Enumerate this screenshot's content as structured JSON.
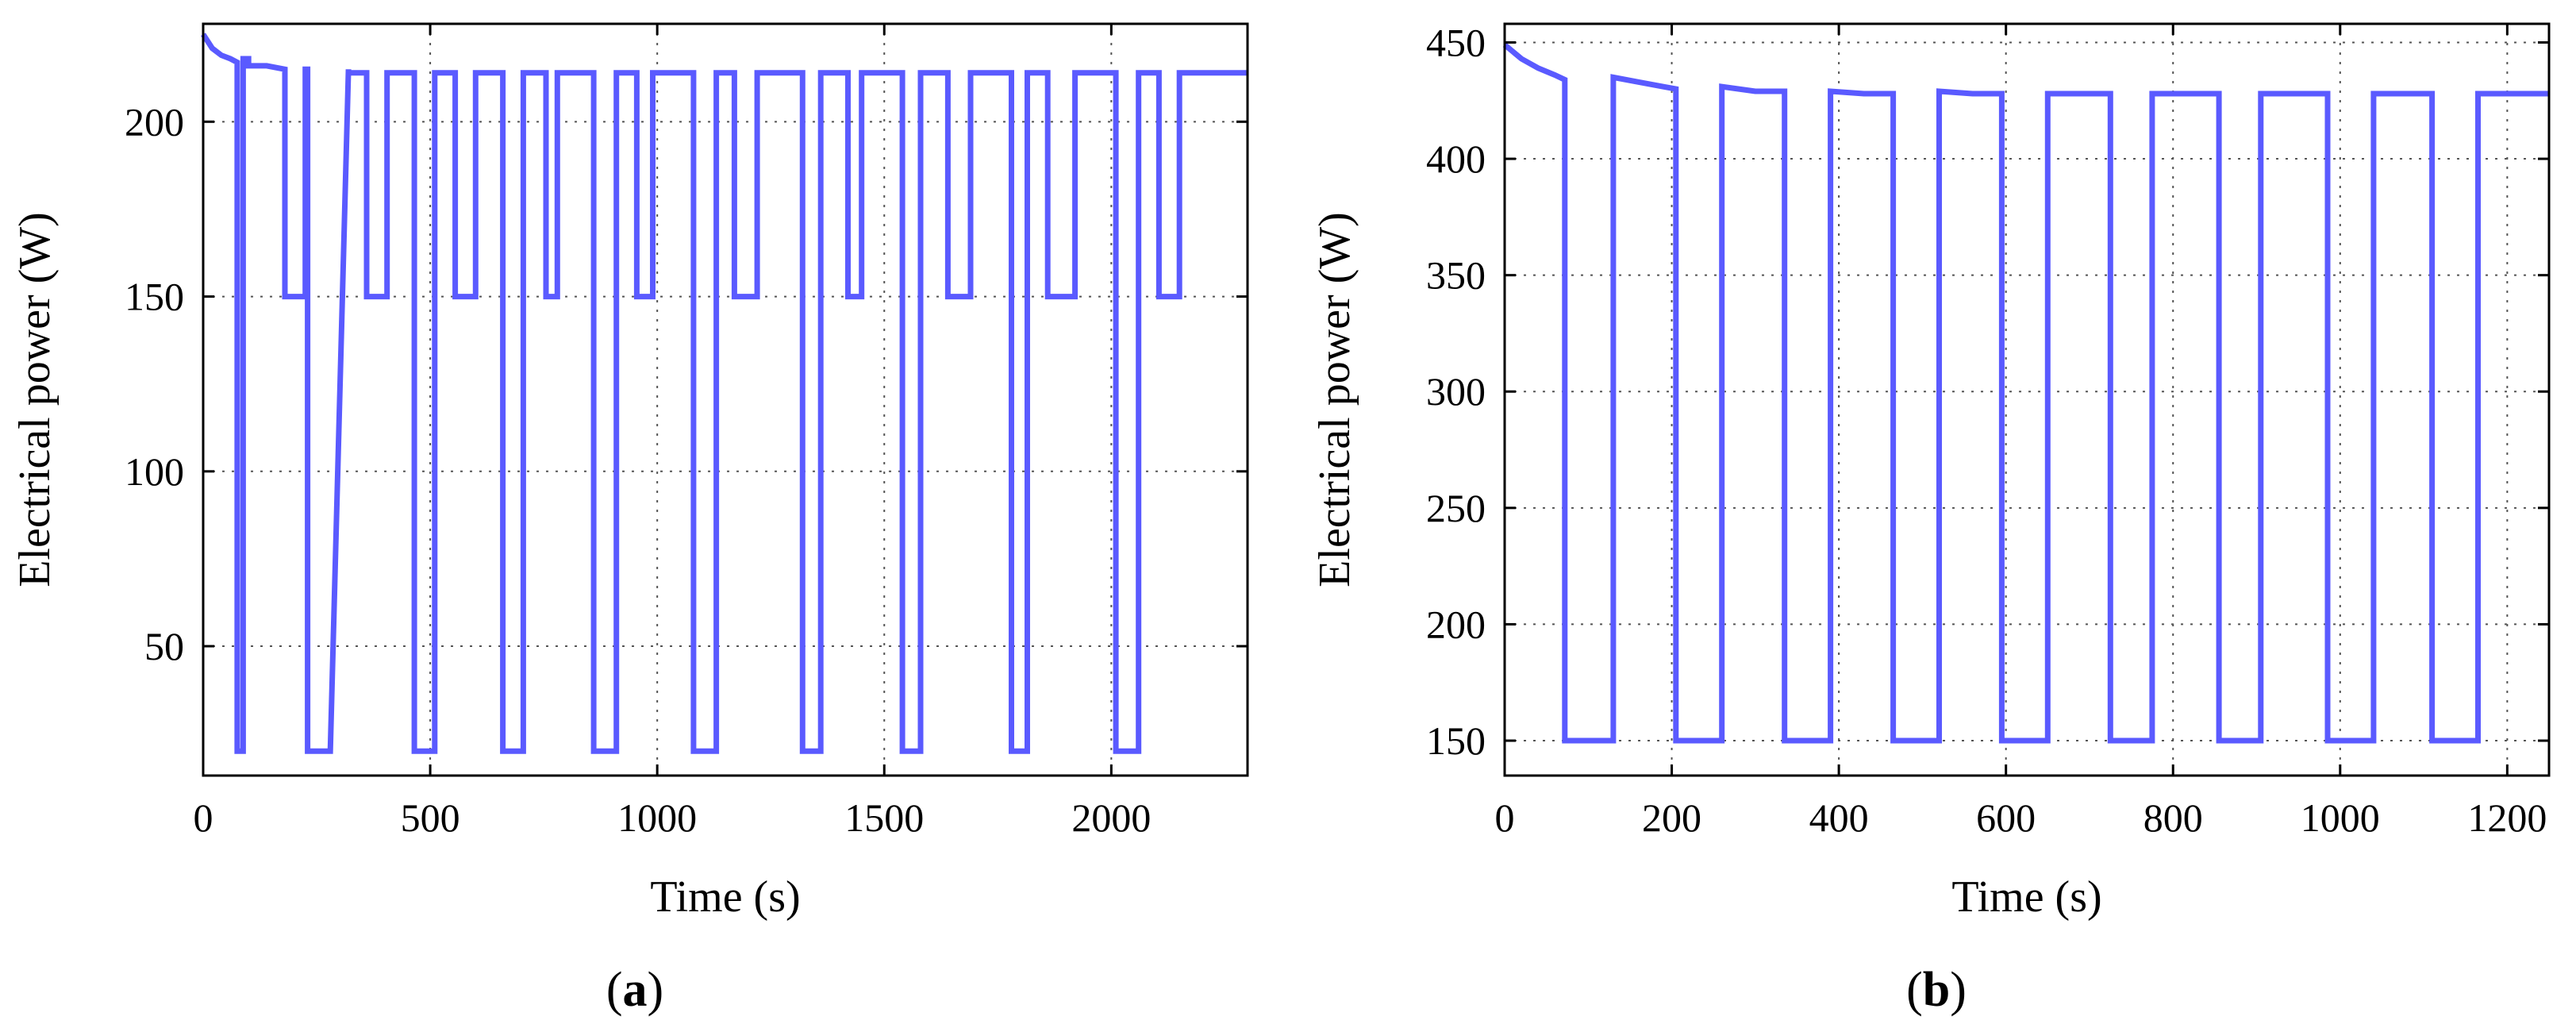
{
  "chart_data": [
    {
      "type": "line",
      "panel_label": "(a)",
      "panel_letter": "a",
      "xlabel": "Time (s)",
      "ylabel": "Electrical power (W)",
      "xlim": [
        0,
        2300
      ],
      "ylim": [
        13,
        228
      ],
      "xticks": [
        0,
        500,
        1000,
        1500,
        2000
      ],
      "yticks": [
        50,
        100,
        150,
        200
      ],
      "grid": true,
      "series": [
        {
          "color": "#5a5aff",
          "x": [
            0,
            20,
            40,
            60,
            75,
            75,
            88,
            88,
            100,
            100,
            140,
            180,
            180,
            225,
            225,
            230,
            230,
            280,
            320,
            320,
            360,
            360,
            405,
            405,
            410,
            410,
            455,
            465,
            465,
            510,
            510,
            555,
            555,
            600,
            600,
            630,
            660,
            660,
            705,
            705,
            755,
            755,
            780,
            780,
            830,
            860,
            860,
            910,
            910,
            955,
            955,
            990,
            990,
            1050,
            1080,
            1080,
            1130,
            1130,
            1170,
            1170,
            1220,
            1220,
            1270,
            1320,
            1320,
            1360,
            1360,
            1420,
            1420,
            1450,
            1450,
            1495,
            1540,
            1540,
            1580,
            1580,
            1640,
            1640,
            1690,
            1690,
            1730,
            1780,
            1780,
            1815,
            1815,
            1860,
            1860,
            1920,
            1920,
            1970,
            2010,
            2010,
            2060,
            2060,
            2105,
            2105,
            2150,
            2150,
            2200,
            2245,
            2300
          ],
          "y": [
            225,
            221,
            219,
            218,
            217,
            20,
            20,
            218,
            218,
            216,
            216,
            215,
            150,
            150,
            215,
            215,
            20,
            20,
            215,
            214,
            214,
            150,
            150,
            214,
            214,
            214,
            214,
            214,
            20,
            20,
            214,
            214,
            150,
            150,
            214,
            214,
            214,
            20,
            20,
            214,
            214,
            150,
            150,
            214,
            214,
            214,
            20,
            20,
            214,
            214,
            150,
            150,
            214,
            214,
            214,
            20,
            20,
            214,
            214,
            150,
            150,
            214,
            214,
            214,
            20,
            20,
            214,
            214,
            150,
            150,
            214,
            214,
            214,
            20,
            20,
            214,
            214,
            150,
            150,
            214,
            214,
            214,
            20,
            20,
            214,
            214,
            150,
            150,
            214,
            214,
            214,
            20,
            20,
            214,
            214,
            150,
            150,
            214,
            214,
            214,
            214
          ]
        }
      ]
    },
    {
      "type": "line",
      "panel_label": "(b)",
      "panel_letter": "b",
      "xlabel": "Time (s)",
      "ylabel": "Electrical power (W)",
      "xlim": [
        0,
        1250
      ],
      "ylim": [
        135,
        458
      ],
      "xticks": [
        0,
        200,
        400,
        600,
        800,
        1000,
        1200
      ],
      "yticks": [
        150,
        200,
        250,
        300,
        350,
        400,
        450
      ],
      "grid": true,
      "series": [
        {
          "color": "#5a5aff",
          "x": [
            0,
            20,
            40,
            60,
            72,
            72,
            130,
            130,
            160,
            190,
            205,
            205,
            260,
            260,
            300,
            335,
            335,
            390,
            390,
            430,
            465,
            465,
            520,
            520,
            560,
            595,
            595,
            650,
            650,
            690,
            725,
            725,
            775,
            775,
            820,
            855,
            855,
            905,
            905,
            950,
            985,
            985,
            1040,
            1040,
            1080,
            1110,
            1110,
            1165,
            1165,
            1250
          ],
          "y": [
            449,
            443,
            439,
            436,
            434,
            150,
            150,
            435,
            433,
            431,
            430,
            150,
            150,
            431,
            429,
            429,
            150,
            150,
            429,
            428,
            428,
            150,
            150,
            429,
            428,
            428,
            150,
            150,
            428,
            428,
            428,
            150,
            150,
            428,
            428,
            428,
            150,
            150,
            428,
            428,
            428,
            150,
            150,
            428,
            428,
            428,
            150,
            150,
            428,
            428
          ]
        }
      ]
    }
  ]
}
